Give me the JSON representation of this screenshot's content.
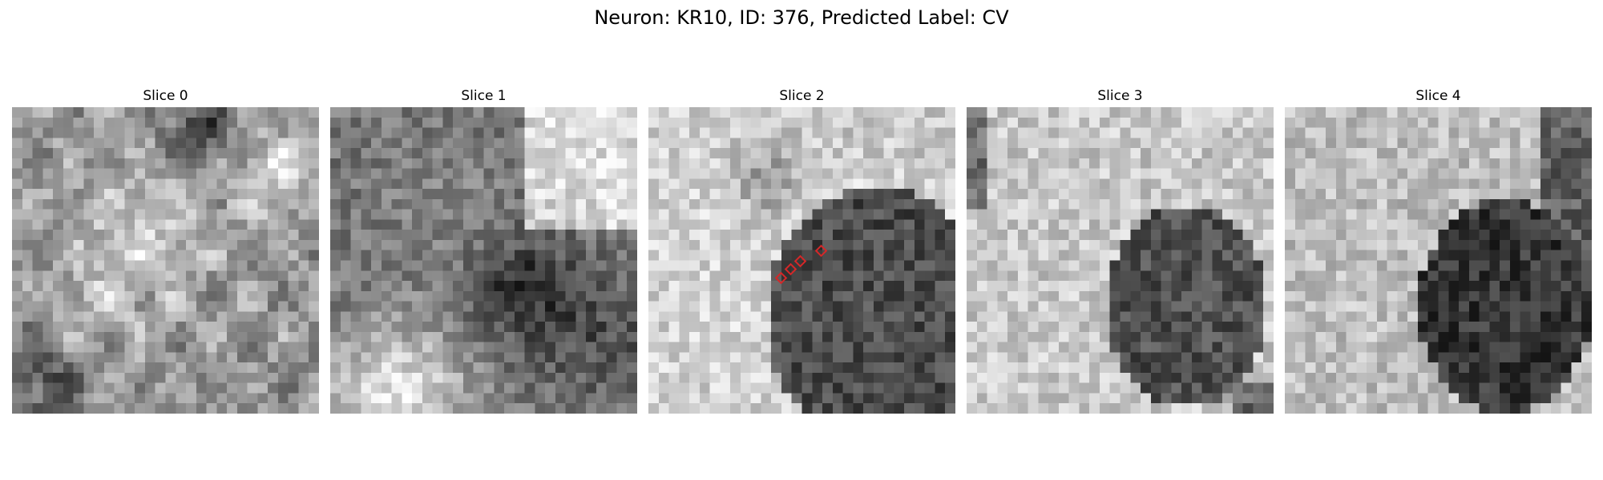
{
  "figure": {
    "title": "Neuron: KR10, ID: 376, Predicted Label: CV"
  },
  "panels": [
    {
      "title": "Slice 0"
    },
    {
      "title": "Slice 1"
    },
    {
      "title": "Slice 2"
    },
    {
      "title": "Slice 3"
    },
    {
      "title": "Slice 4"
    }
  ],
  "marker_color": "#d62728",
  "grid_size": 30
}
